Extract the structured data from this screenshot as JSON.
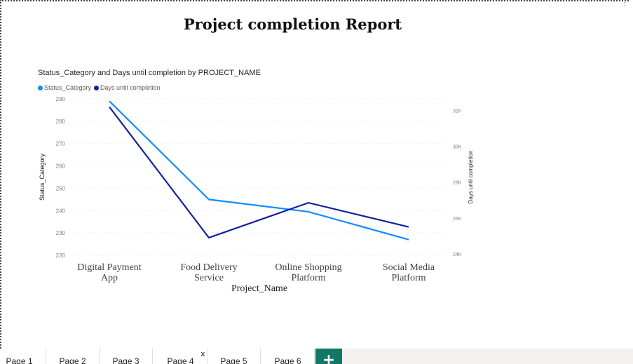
{
  "report": {
    "title": "Project completion Report"
  },
  "visual": {
    "title": "Status_Category and Days until completion by PROJECT_NAME",
    "legend": [
      {
        "label": "Status_Category",
        "color": "#118dff"
      },
      {
        "label": "Days until completion",
        "color": "#12239e"
      }
    ]
  },
  "chart_data": {
    "type": "line",
    "x_label": "Project_Name",
    "categories": [
      [
        "Digital Payment",
        "App"
      ],
      [
        "Food Delivery",
        "Service"
      ],
      [
        "Online Shopping",
        "Platform"
      ],
      [
        "Social Media",
        "Platform"
      ]
    ],
    "y_left": {
      "label": "Status_Category",
      "range": [
        220,
        290
      ],
      "ticks": [
        220,
        230,
        240,
        250,
        260,
        270,
        280,
        290
      ]
    },
    "y_right": {
      "label": "Days until completion",
      "range": [
        23800,
        33000
      ],
      "ticks": [
        24000,
        26000,
        28000,
        30000,
        32000
      ],
      "tick_labels": [
        "24K",
        "26K",
        "28K",
        "30K",
        "32K"
      ]
    },
    "series": [
      {
        "name": "Status_Category",
        "axis": "left",
        "color": "#118dff",
        "values": [
          289,
          245,
          239.5,
          227
        ]
      },
      {
        "name": "Days until completion",
        "axis": "right",
        "color": "#12239e",
        "values": [
          32200,
          24900,
          26850,
          25500
        ]
      }
    ],
    "gridlines": true
  },
  "tabs": [
    {
      "label": "Page 1"
    },
    {
      "label": "Page 2"
    },
    {
      "label": "Page 3"
    },
    {
      "label": "Page 4",
      "active": true
    },
    {
      "label": "Page 5"
    },
    {
      "label": "Page 6"
    }
  ],
  "tab_close_glyph": "x",
  "add_page_glyph": "+"
}
